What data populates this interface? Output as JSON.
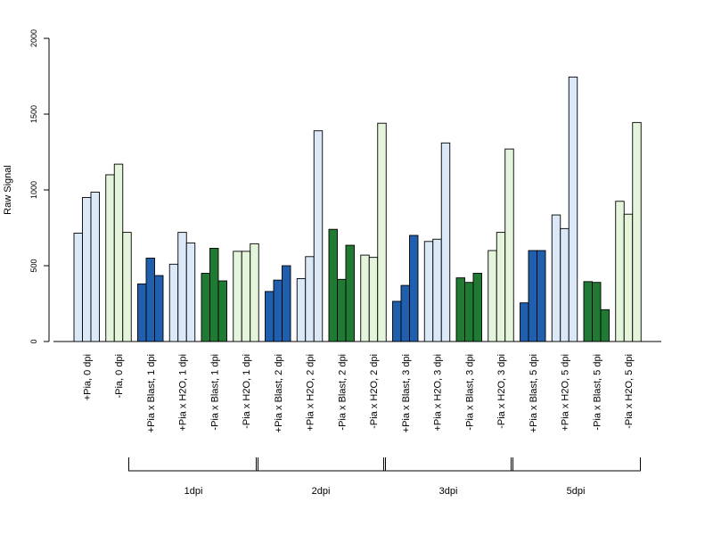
{
  "chart_data": {
    "type": "bar",
    "ylabel": "Raw Signal",
    "xlabel": "",
    "ylim": [
      0,
      2000
    ],
    "yticks": [
      0,
      500,
      1000,
      1500,
      2000
    ],
    "grid": false,
    "categories": [
      "+Pia, 0 dpi",
      "-Pia, 0 dpi",
      "+Pia x Blast, 1 dpi",
      "+Pia x H2O, 1 dpi",
      "-Pia x Blast, 1 dpi",
      "-Pia x H2O, 1 dpi",
      "+Pia x Blast, 2 dpi",
      "+Pia x H2O, 2 dpi",
      "-Pia x Blast, 2 dpi",
      "-Pia x H2O, 2 dpi",
      "+Pia x Blast, 3 dpi",
      "+Pia x H2O, 3 dpi",
      "-Pia x Blast, 3 dpi",
      "-Pia x H2O, 3 dpi",
      "+Pia x Blast, 5 dpi",
      "+Pia x H2O, 5 dpi",
      "-Pia x Blast, 5 dpi",
      "-Pia x H2O, 5 dpi"
    ],
    "series": [
      {
        "values": [
          715,
          1100,
          380,
          510,
          450,
          595,
          330,
          415,
          740,
          570,
          265,
          660,
          420,
          600,
          255,
          835,
          395,
          925
        ]
      },
      {
        "values": [
          950,
          1170,
          550,
          720,
          615,
          595,
          405,
          560,
          410,
          555,
          370,
          675,
          390,
          720,
          600,
          745,
          390,
          840
        ]
      },
      {
        "values": [
          985,
          720,
          435,
          650,
          400,
          645,
          500,
          1390,
          635,
          1440,
          700,
          1310,
          450,
          1270,
          600,
          1745,
          210,
          1445
        ]
      }
    ],
    "category_colors": [
      "#dbe8f7",
      "#e4f5dc",
      "#1f5fad",
      "#dbe8f7",
      "#217a34",
      "#e4f5dc",
      "#1f5fad",
      "#dbe8f7",
      "#217a34",
      "#e4f5dc",
      "#1f5fad",
      "#dbe8f7",
      "#217a34",
      "#e4f5dc",
      "#1f5fad",
      "#dbe8f7",
      "#217a34",
      "#e4f5dc"
    ],
    "groups": [
      {
        "label": "1dpi",
        "first_category": 2,
        "last_category": 5
      },
      {
        "label": "2dpi",
        "first_category": 6,
        "last_category": 9
      },
      {
        "label": "3dpi",
        "first_category": 10,
        "last_category": 13
      },
      {
        "label": "5dpi",
        "first_category": 14,
        "last_category": 17
      }
    ]
  }
}
